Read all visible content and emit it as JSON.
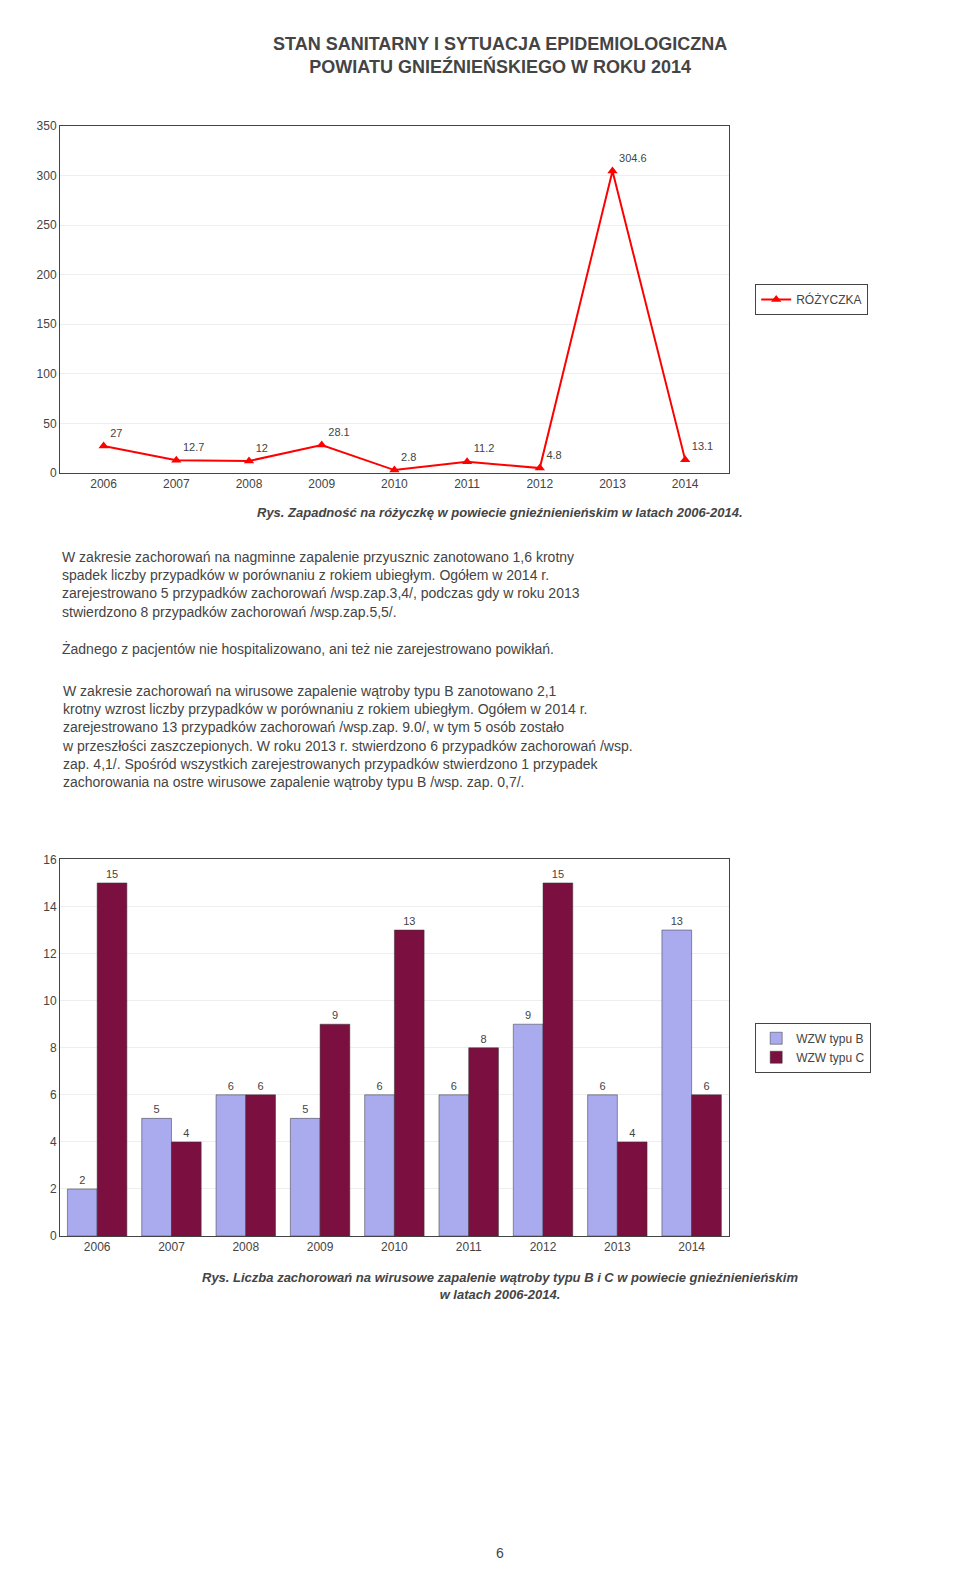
{
  "title": "STAN SANITARNY I SYTUACJA EPIDEMIOLOGICZNA\nPOWIATU GNIEŹNIEŃSKIEGO W ROKU 2014",
  "text": [
    [
      "W zakresie zachorowań na nagminne zapalenie przyusznic zanotowano 1,6 krotny",
      "spadek liczby przypadków w porównaniu z rokiem ubiegłym. Ogółem w 2014 r.",
      "zarejestrowano 5 przypadków zachorowań /wsp.zap.3,4/, podczas gdy w roku 2013",
      "stwierdzono 8 przypadków zachorowań /wsp.zap.5,5/."
    ],
    [
      "Żadnego z pacjentów nie hospitalizowano, ani też nie zarejestrowano powikłań."
    ],
    [
      "W zakresie zachorowań na wirusowe zapalenie wątroby typu B zanotowano 2,1",
      "krotny wzrost liczby przypadków w porównaniu z rokiem ubiegłym. Ogółem w 2014 r.",
      "zarejestrowano 13 przypadków zachorowań /wsp.zap. 9.0/, w tym 5 osób zostało",
      "w przeszłości zaszczepionych. W roku 2013 r. stwierdzono 6 przypadków zachorowań /wsp.",
      "zap. 4,1/. Spośród wszystkich zarejestrowanych przypadków stwierdzono 1 przypadek",
      "zachorowania na ostre wirusowe zapalenie wątroby typu B /wsp. zap. 0,7/."
    ]
  ],
  "page_number": "6",
  "chart_data": [
    {
      "type": "line",
      "title": "Rys. Zapadność na różyczkę w powiecie gnieźnienieńskim w latach 2006-2014.",
      "x": [
        2006,
        2007,
        2008,
        2009,
        2010,
        2011,
        2012,
        2013,
        2014
      ],
      "series": [
        {
          "name": "RÓŻYCZKA",
          "color": "#ff0000",
          "marker": "triangle",
          "values": [
            27,
            12.7,
            12,
            28.1,
            2.8,
            11.2,
            4.8,
            304.6,
            13.1
          ]
        }
      ],
      "xlim": [
        2005.4,
        2014.6
      ],
      "xticks": [
        2006,
        2007,
        2008,
        2009,
        2010,
        2011,
        2012,
        2013,
        2014
      ],
      "ylim": [
        0,
        350
      ],
      "yticks": [
        0,
        50,
        100,
        150,
        200,
        250,
        300,
        350
      ],
      "grid": "y",
      "data_labels": true,
      "legend": "right"
    },
    {
      "type": "bar",
      "title": "Rys. Liczba zachorowań na wirusowe zapalenie wątroby typu B i C w powiecie gnieźnienieńskim\nw latach 2006-2014.",
      "categories": [
        "2006",
        "2007",
        "2008",
        "2009",
        "2010",
        "2011",
        "2012",
        "2013",
        "2014"
      ],
      "series": [
        {
          "name": "WZW typu B",
          "color": "#aaaaee",
          "values": [
            2,
            5,
            6,
            5,
            6,
            6,
            9,
            6,
            13
          ]
        },
        {
          "name": "WZW typu C",
          "color": "#7b1040",
          "values": [
            15,
            4,
            6,
            9,
            13,
            8,
            15,
            4,
            6
          ]
        }
      ],
      "ylim": [
        0,
        16
      ],
      "yticks": [
        0,
        2,
        4,
        6,
        8,
        10,
        12,
        14,
        16
      ],
      "grid": "y",
      "data_labels": true,
      "legend": "right"
    }
  ]
}
